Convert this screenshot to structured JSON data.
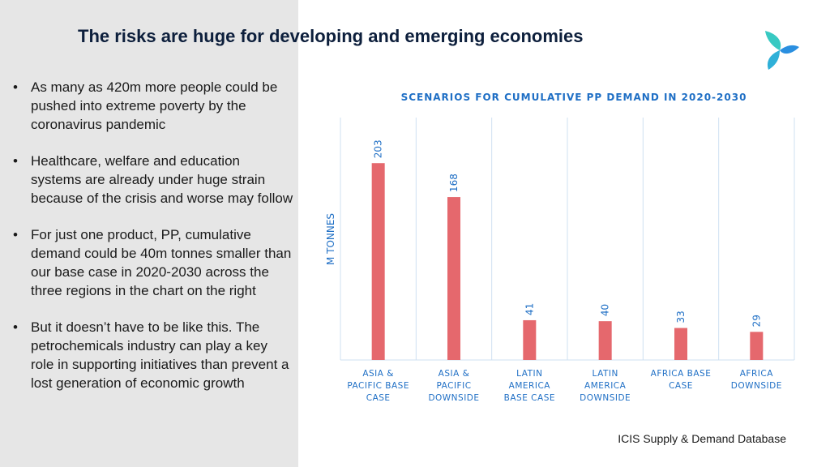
{
  "slide": {
    "title": "The risks are huge for developing and emerging economies",
    "bullet_marker": "•",
    "bullets": [
      "As many as 420m more people could be pushed into extreme poverty by the coronavirus pandemic",
      "Healthcare, welfare and education systems are already under huge strain because of the crisis and worse may follow",
      "For just one product, PP, cumulative demand could be 40m tonnes smaller than our base case in 2020-2030 across the three regions in the chart on the right",
      "But it doesn’t have to be like this. The petrochemicals industry can play a key role in supporting initiatives than prevent a lost generation of economic growth"
    ],
    "source": "ICIS Supply & Demand Database"
  },
  "colors": {
    "bar": "#e5686d",
    "accent": "#1f6fc5",
    "title": "#0d1f3c",
    "panel": "#e6e6e6",
    "logo_teal": "#38c9c2",
    "logo_blue": "#2a8fe0"
  },
  "icons": {
    "logo": "icis-logo-icon"
  },
  "chart_data": {
    "type": "bar",
    "title": "SCENARIOS FOR CUMULATIVE PP DEMAND IN 2020-2030",
    "ylabel": "M TONNES",
    "xlabel": "",
    "categories": [
      [
        "ASIA &",
        "PACIFIC BASE",
        "CASE"
      ],
      [
        "ASIA &",
        "PACIFIC",
        "DOWNSIDE"
      ],
      [
        "LATIN",
        "AMERICA",
        "BASE CASE"
      ],
      [
        "LATIN",
        "AMERICA",
        "DOWNSIDE"
      ],
      [
        "AFRICA BASE",
        "CASE"
      ],
      [
        "AFRICA",
        "DOWNSIDE"
      ]
    ],
    "values": [
      203,
      168,
      41,
      40,
      33,
      29
    ],
    "ylim": [
      0,
      250
    ],
    "grid": "vertical",
    "data_labels": true
  }
}
